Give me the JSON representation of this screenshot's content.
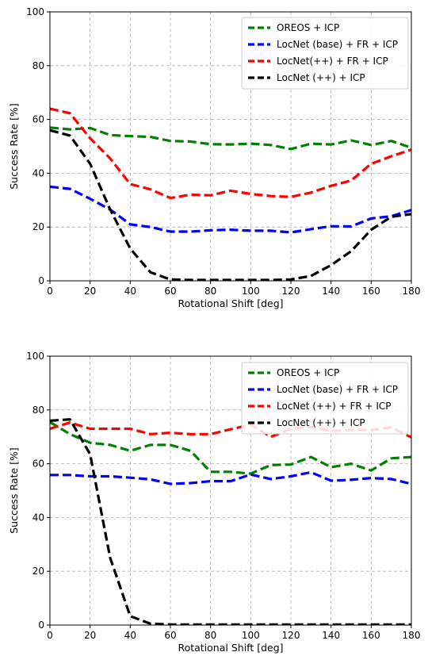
{
  "chart_data": [
    {
      "type": "line",
      "xlabel": "Rotational Shift [deg]",
      "ylabel": "Success Rate [%]",
      "xlim": [
        0,
        180
      ],
      "ylim": [
        0,
        100
      ],
      "xticks": [
        "0",
        "20",
        "40",
        "60",
        "80",
        "100",
        "120",
        "140",
        "160",
        "180"
      ],
      "yticks": [
        "0",
        "20",
        "40",
        "60",
        "80",
        "100"
      ],
      "grid": true,
      "legend_position": "top-right",
      "x": [
        0,
        10,
        20,
        30,
        40,
        50,
        60,
        70,
        80,
        90,
        100,
        110,
        120,
        130,
        140,
        150,
        160,
        170,
        180
      ],
      "series": [
        {
          "name": "OREOS + ICP",
          "color": "#008000",
          "values": [
            57,
            56.3,
            56.8,
            54.2,
            53.8,
            53.5,
            52,
            51.8,
            50.8,
            50.7,
            51,
            50.5,
            49,
            51,
            50.7,
            52.2,
            50.5,
            52,
            49.5
          ]
        },
        {
          "name": "LocNet (base) + FR + ICP",
          "color": "#0000ff",
          "values": [
            35,
            34.2,
            30.5,
            26.5,
            21,
            20,
            18.3,
            18.3,
            18.8,
            19,
            18.6,
            18.6,
            18,
            19.2,
            20.3,
            20.2,
            23.2,
            24,
            26.3
          ]
        },
        {
          "name": "LocNet(++) + FR + ICP",
          "color": "#ff0000",
          "values": [
            64,
            62.3,
            53,
            45.5,
            36,
            34,
            30.8,
            32,
            31.8,
            33.5,
            32.3,
            31.5,
            31.2,
            32.8,
            35.3,
            37.3,
            43.5,
            46.3,
            48.8
          ]
        },
        {
          "name": "LocNet (++) + ICP",
          "color": "#000000",
          "values": [
            56,
            54,
            43.5,
            26.5,
            12,
            3.2,
            0.5,
            0.3,
            0.3,
            0.3,
            0.3,
            0.3,
            0.5,
            1.8,
            5.8,
            11,
            19,
            23.8,
            24.8
          ]
        }
      ]
    },
    {
      "type": "line",
      "xlabel": "Rotational Shift [deg]",
      "ylabel": "Success Rate [%]",
      "xlim": [
        0,
        180
      ],
      "ylim": [
        0,
        100
      ],
      "xticks": [
        "0",
        "20",
        "40",
        "60",
        "80",
        "100",
        "120",
        "140",
        "160",
        "180"
      ],
      "yticks": [
        "0",
        "20",
        "40",
        "60",
        "80",
        "100"
      ],
      "grid": true,
      "legend_position": "top-right",
      "x": [
        0,
        10,
        20,
        30,
        40,
        50,
        60,
        70,
        80,
        90,
        100,
        110,
        120,
        130,
        140,
        150,
        160,
        170,
        180
      ],
      "series": [
        {
          "name": "OREOS + ICP",
          "color": "#008000",
          "values": [
            75.5,
            71,
            67.8,
            67,
            64.8,
            67,
            67,
            64.8,
            57,
            57,
            56.3,
            59.5,
            59.7,
            62.5,
            58.7,
            60,
            57.5,
            62,
            62.5
          ]
        },
        {
          "name": "LocNet (base) + FR + ICP",
          "color": "#0000ff",
          "values": [
            55.8,
            55.8,
            55.3,
            55.3,
            54.8,
            54.2,
            52.5,
            52.8,
            53.5,
            53.5,
            56,
            54.3,
            55.3,
            56.8,
            53.7,
            54,
            54.7,
            54.3,
            52.5
          ]
        },
        {
          "name": "LocNet (++) + FR + ICP",
          "color": "#ff0000",
          "values": [
            73,
            75.3,
            73,
            73,
            73,
            71,
            71.5,
            71,
            71,
            72.8,
            74.5,
            70,
            73,
            73.7,
            72.2,
            72.5,
            72.5,
            73.5,
            69.8
          ]
        },
        {
          "name": "LocNet (++) + ICP",
          "color": "#000000",
          "values": [
            76,
            76.5,
            63.5,
            25,
            3.3,
            0.5,
            0.2,
            0.2,
            0.2,
            0.2,
            0.2,
            0.2,
            0.2,
            0.2,
            0.2,
            0.2,
            0.2,
            0.2,
            0.2
          ]
        }
      ]
    }
  ]
}
